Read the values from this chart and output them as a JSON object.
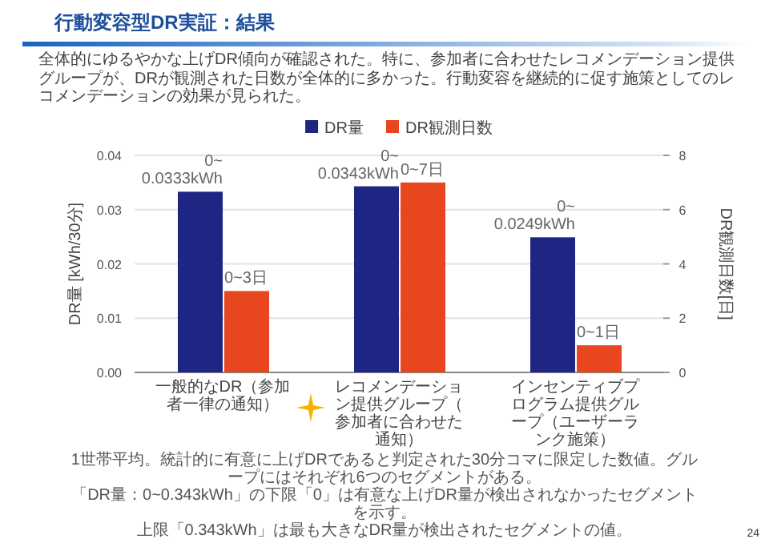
{
  "chart_data": {
    "type": "bar",
    "title": "行動変容型DR実証：結果",
    "subtitle": "全体的にゆるやかな上げDR傾向が確認された。特に、参加者に合わせたレコメンデーション提供グループが、DRが観測された日数が全体的に多かった。行動変容を継続的に促す施策としてのレコメンデーションの効果が見られた。",
    "categories": [
      "一般的なDR（参加者一律の通知）",
      "レコメンデーション提供グループ（参加者に合わせた通知）",
      "インセンティブプログラム提供グループ（ユーザーランク施策）"
    ],
    "series": [
      {
        "name": "DR量",
        "color": "#1f2582",
        "values": [
          0.0333,
          0.0343,
          0.0249
        ],
        "value_labels": [
          "0~\n0.0333kWh",
          "0~\n0.0343kWh",
          "0~\n0.0249kWh"
        ]
      },
      {
        "name": "DR観測日数",
        "color": "#e8461e",
        "axis": "y2",
        "values": [
          3,
          7,
          1
        ],
        "value_labels": [
          "0~3日",
          "0~7日",
          "0~1日"
        ]
      }
    ],
    "ylabel": "DR量 [kWh/30分]",
    "y2label": "DR観測日数[日]",
    "ylim": [
      0,
      0.04
    ],
    "yticks": [
      {
        "value": 0,
        "label": "0.00"
      },
      {
        "value": 0.01,
        "label": "0.01"
      },
      {
        "value": 0.02,
        "label": "0.02"
      },
      {
        "value": 0.03,
        "label": "0.03"
      },
      {
        "value": 0.04,
        "label": "0.04"
      }
    ],
    "y2lim": [
      0,
      8
    ],
    "y2ticks": [
      0,
      2,
      4,
      6,
      8
    ],
    "grid": "y",
    "legend": "top",
    "annotations": [
      "1世帯平均。統計的に有意に上げDRであると判定された30分コマに限定した数値。グループにはそれぞれ6つのセグメントがある。",
      "「DR量：0~0.343kWh」の下限「0」は有意な上げDR量が検出されなかったセグメントを示す。",
      "上限「0.343kWh」は最も大きなDR量が検出されたセグメントの値。",
      "24"
    ]
  }
}
